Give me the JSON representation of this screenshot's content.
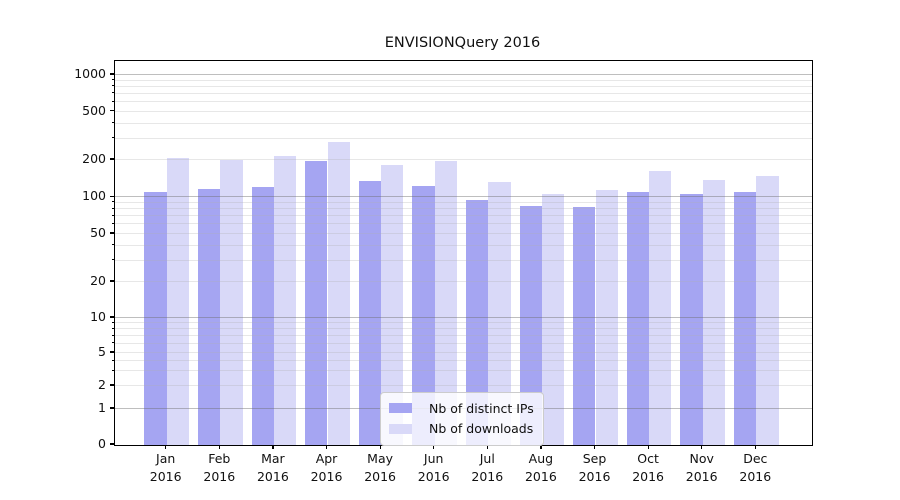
{
  "chart_data": {
    "type": "bar",
    "title": "ENVISIONQuery 2016",
    "categories": [
      "Jan 2016",
      "Feb 2016",
      "Mar 2016",
      "Apr 2016",
      "May 2016",
      "Jun 2016",
      "Jul 2016",
      "Aug 2016",
      "Sep 2016",
      "Oct 2016",
      "Nov 2016",
      "Dec 2016"
    ],
    "series": [
      {
        "name": "Nb of distinct IPs",
        "color": "#a5a5f2",
        "values": [
          111,
          117,
          122,
          195,
          135,
          124,
          95,
          85,
          83,
          111,
          106,
          110
        ]
      },
      {
        "name": "Nb of downloads",
        "color": "#d9d9f8",
        "values": [
          206,
          202,
          216,
          280,
          181,
          196,
          132,
          106,
          115,
          164,
          139,
          148
        ]
      }
    ],
    "xlabel": "",
    "ylabel": "",
    "yscale": "symlog",
    "ylim": [
      0,
      1300
    ],
    "grid": true,
    "legend_position": "lower center",
    "y_axis": {
      "tick_labels": [
        "0",
        "1",
        "2",
        "5",
        "10",
        "20",
        "50",
        "100",
        "200",
        "500",
        "1000"
      ],
      "major_gridline_values": [
        1,
        10,
        100,
        1000
      ],
      "minor_gridline_values": [
        2,
        3,
        4,
        5,
        6,
        7,
        8,
        9,
        20,
        30,
        40,
        50,
        60,
        70,
        80,
        90,
        200,
        300,
        400,
        500,
        600,
        700,
        800,
        900
      ],
      "anchors": [
        [
          0,
          0.0
        ],
        [
          1,
          0.0938
        ],
        [
          2,
          0.1536
        ],
        [
          5,
          0.2396
        ],
        [
          10,
          0.3307
        ],
        [
          20,
          0.4245
        ],
        [
          50,
          0.5495
        ],
        [
          100,
          0.645
        ],
        [
          200,
          0.7422
        ],
        [
          500,
          0.868
        ],
        [
          1000,
          0.9635
        ]
      ],
      "decade_slope": 0.3185
    }
  },
  "colors": {
    "background": "#ffffff",
    "text": "#111111",
    "axis_frame": "#000000",
    "bar_distinct_ips": "#a5a5f2",
    "bar_downloads": "#d9d9f8",
    "grid_major": "rgba(110,110,110,0.45)",
    "grid_minor": "rgba(175,175,175,0.30)",
    "legend_bg": "rgba(255,255,255,0.8)",
    "legend_border": "#cccccc"
  }
}
